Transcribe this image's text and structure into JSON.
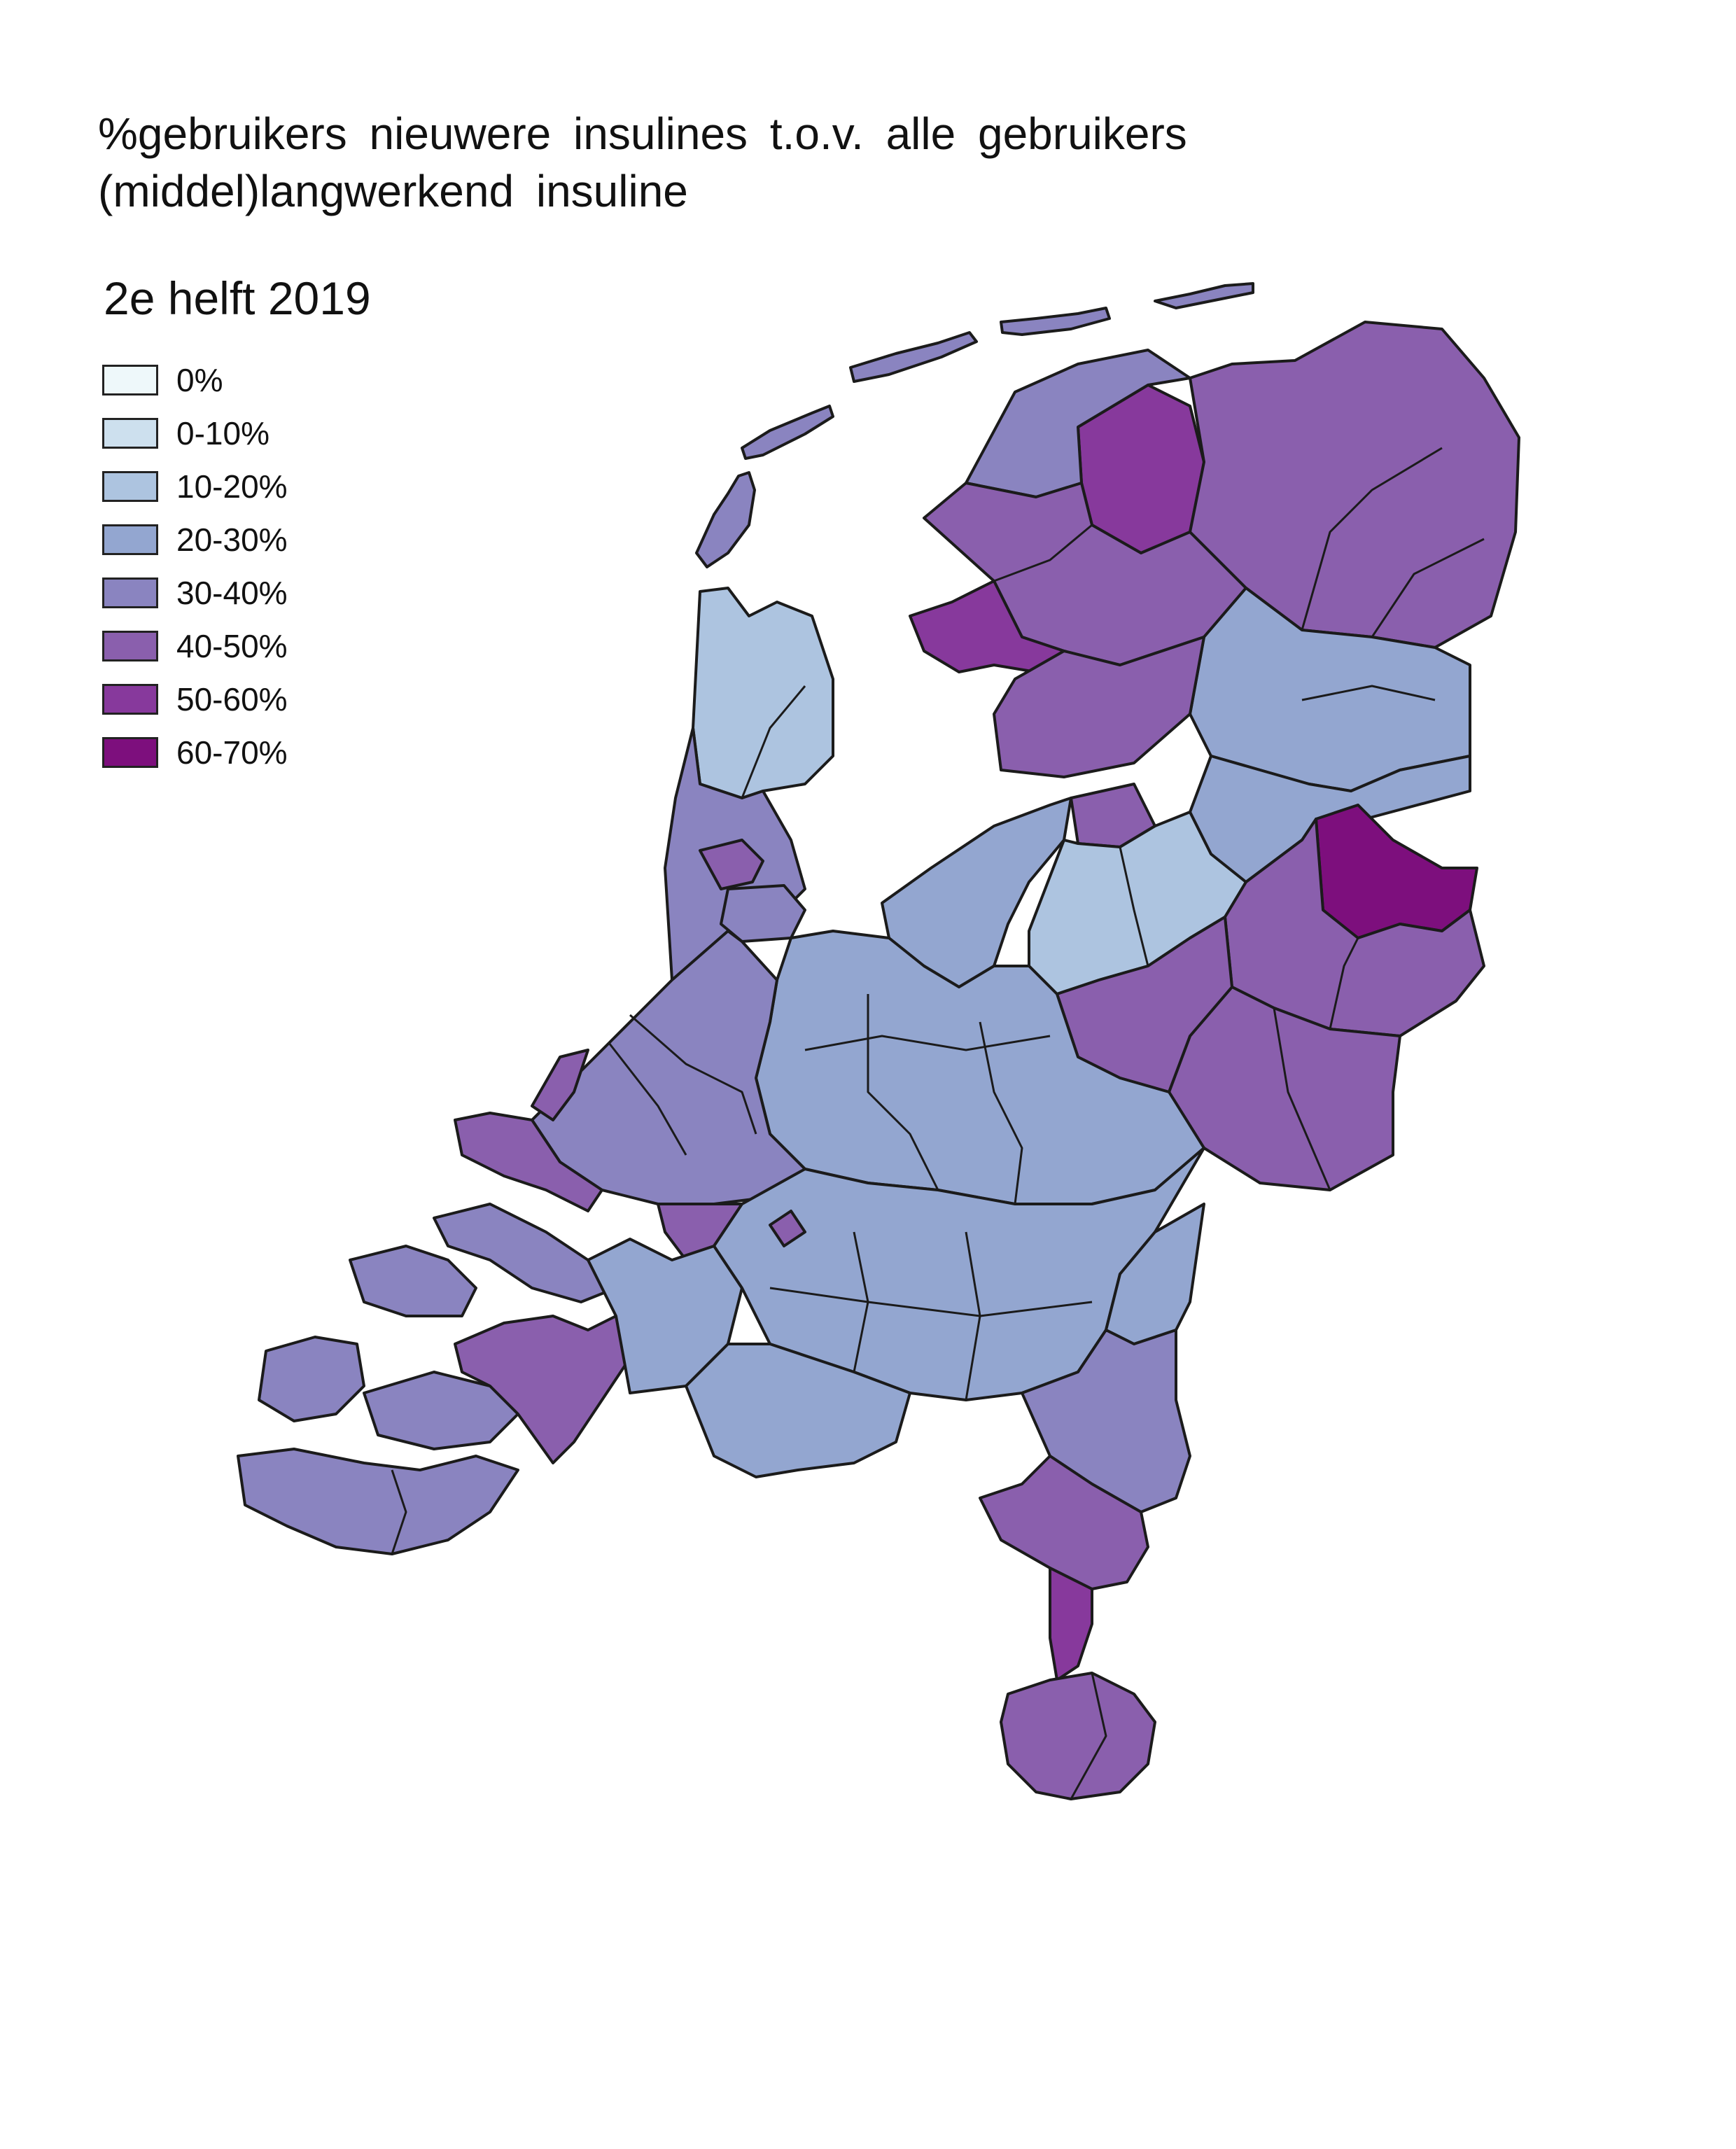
{
  "map": {
    "title": "%gebruikers nieuwere insulines t.o.v. alle gebruikers (middel)langwerkend insuline",
    "period": "2e helft 2019"
  },
  "legend": {
    "items": [
      {
        "label": "0%",
        "color": "#eef8fa"
      },
      {
        "label": "0-10%",
        "color": "#cde0ee"
      },
      {
        "label": "10-20%",
        "color": "#adc4e0"
      },
      {
        "label": "20-30%",
        "color": "#93a6d0"
      },
      {
        "label": "30-40%",
        "color": "#8a84c0"
      },
      {
        "label": "40-50%",
        "color": "#8a5fad"
      },
      {
        "label": "50-60%",
        "color": "#87399c"
      },
      {
        "label": "60-70%",
        "color": "#7d0f7d"
      }
    ]
  },
  "regions": [
    {
      "region": "Friesland noord",
      "category": "30-40%"
    },
    {
      "region": "Friesland Leeuwarden",
      "category": "50-60%"
    },
    {
      "region": "Friesland zuidwest",
      "category": "50-60%"
    },
    {
      "region": "Friesland midden",
      "category": "40-50%"
    },
    {
      "region": "Groningen",
      "category": "40-50%"
    },
    {
      "region": "Drenthe",
      "category": "20-30%"
    },
    {
      "region": "Flevoland",
      "category": "20-30%"
    },
    {
      "region": "Noord-Holland noord",
      "category": "10-20%"
    },
    {
      "region": "Noord-Holland midden",
      "category": "30-40%"
    },
    {
      "region": "Zaanstreek",
      "category": "40-50%"
    },
    {
      "region": "Veluwe",
      "category": "10-20%"
    },
    {
      "region": "Twente noord",
      "category": "60-70%"
    },
    {
      "region": "Twente",
      "category": "40-50%"
    },
    {
      "region": "Achterhoek",
      "category": "40-50%"
    },
    {
      "region": "Utrecht",
      "category": "20-30%"
    },
    {
      "region": "Zuid-Holland",
      "category": "30-40%"
    },
    {
      "region": "Den Haag",
      "category": "40-50%"
    },
    {
      "region": "Rotterdam",
      "category": "40-50%"
    },
    {
      "region": "Zeeland",
      "category": "30-40%"
    },
    {
      "region": "West-Brabant",
      "category": "40-50%"
    },
    {
      "region": "Brabant",
      "category": "20-30%"
    },
    {
      "region": "Noord-Limburg",
      "category": "30-40%"
    },
    {
      "region": "Midden-Limburg",
      "category": "40-50%"
    },
    {
      "region": "Zuid-Limburg",
      "category": "40-50%"
    },
    {
      "region": "Sittard",
      "category": "50-60%"
    }
  ]
}
